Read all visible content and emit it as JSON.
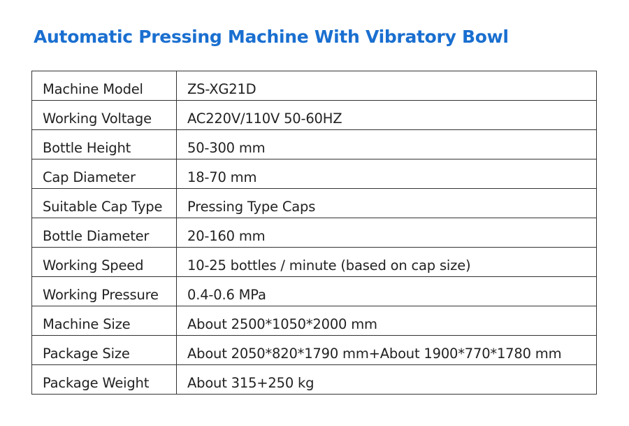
{
  "header": {
    "title": "Automatic Pressing Machine With Vibratory Bowl"
  },
  "table": {
    "rows": [
      [
        "Machine Model",
        "ZS-XG21D"
      ],
      [
        "Working Voltage",
        "AC220V/110V 50-60HZ"
      ],
      [
        "Bottle Height",
        "50-300 mm"
      ],
      [
        "Cap Diameter",
        "18-70 mm"
      ],
      [
        "Suitable Cap Type",
        "Pressing Type Caps"
      ],
      [
        "Bottle Diameter",
        "20-160 mm"
      ],
      [
        "Working Speed",
        "10-25 bottles / minute (based on cap size)"
      ],
      [
        "Working Pressure",
        "0.4-0.6 MPa"
      ],
      [
        "Machine Size",
        "About 2500*1050*2000 mm"
      ],
      [
        "Package Size",
        "About 2050*820*1790 mm+About 1900*770*1780 mm"
      ],
      [
        "Package Weight",
        "About 315+250 kg"
      ]
    ]
  }
}
